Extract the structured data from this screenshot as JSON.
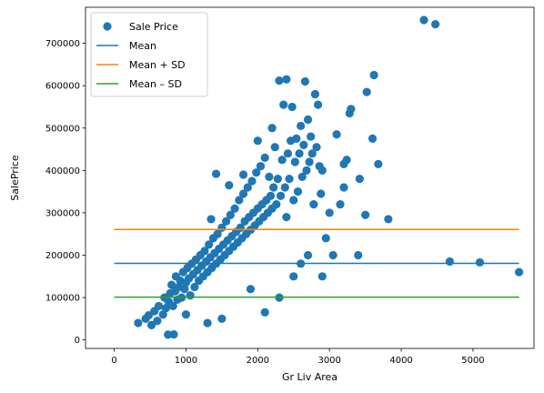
{
  "chart_data": {
    "type": "scatter",
    "title": "",
    "xlabel": "Gr Liv Area",
    "ylabel": "SalePrice",
    "xlim": [
      -400,
      5850
    ],
    "ylim": [
      -20000,
      785000
    ],
    "xticks": [
      0,
      1000,
      2000,
      3000,
      4000,
      5000
    ],
    "yticks": [
      0,
      100000,
      200000,
      300000,
      400000,
      500000,
      600000,
      700000
    ],
    "grid": false,
    "legend_position": "top-left",
    "series": [
      {
        "name": "Sale Price",
        "kind": "scatter",
        "color": "#1f77b4",
        "points": [
          [
            334,
            40000
          ],
          [
            438,
            50000
          ],
          [
            480,
            58000
          ],
          [
            520,
            35000
          ],
          [
            560,
            68000
          ],
          [
            600,
            45000
          ],
          [
            620,
            80000
          ],
          [
            680,
            60000
          ],
          [
            700,
            100000
          ],
          [
            720,
            75000
          ],
          [
            750,
            12500
          ],
          [
            760,
            90000
          ],
          [
            780,
            110000
          ],
          [
            800,
            130000
          ],
          [
            820,
            80000
          ],
          [
            830,
            13000
          ],
          [
            850,
            115000
          ],
          [
            860,
            150000
          ],
          [
            880,
            95000
          ],
          [
            900,
            125000
          ],
          [
            920,
            140000
          ],
          [
            940,
            100000
          ],
          [
            960,
            160000
          ],
          [
            980,
            120000
          ],
          [
            1000,
            135000
          ],
          [
            1000,
            60000
          ],
          [
            1020,
            170000
          ],
          [
            1040,
            145000
          ],
          [
            1060,
            105000
          ],
          [
            1080,
            180000
          ],
          [
            1100,
            155000
          ],
          [
            1120,
            125000
          ],
          [
            1140,
            190000
          ],
          [
            1160,
            165000
          ],
          [
            1180,
            140000
          ],
          [
            1200,
            200000
          ],
          [
            1220,
            175000
          ],
          [
            1240,
            150000
          ],
          [
            1260,
            210000
          ],
          [
            1280,
            185000
          ],
          [
            1300,
            160000
          ],
          [
            1300,
            40000
          ],
          [
            1320,
            225000
          ],
          [
            1340,
            195000
          ],
          [
            1350,
            285000
          ],
          [
            1360,
            170000
          ],
          [
            1380,
            240000
          ],
          [
            1400,
            205000
          ],
          [
            1420,
            180000
          ],
          [
            1420,
            392000
          ],
          [
            1440,
            250000
          ],
          [
            1460,
            215000
          ],
          [
            1480,
            190000
          ],
          [
            1500,
            265000
          ],
          [
            1500,
            50000
          ],
          [
            1520,
            225000
          ],
          [
            1540,
            200000
          ],
          [
            1560,
            280000
          ],
          [
            1580,
            235000
          ],
          [
            1600,
            210000
          ],
          [
            1600,
            365000
          ],
          [
            1620,
            295000
          ],
          [
            1640,
            245000
          ],
          [
            1660,
            220000
          ],
          [
            1680,
            310000
          ],
          [
            1700,
            255000
          ],
          [
            1720,
            230000
          ],
          [
            1740,
            330000
          ],
          [
            1760,
            265000
          ],
          [
            1780,
            240000
          ],
          [
            1800,
            345000
          ],
          [
            1800,
            390000
          ],
          [
            1820,
            280000
          ],
          [
            1840,
            250000
          ],
          [
            1860,
            360000
          ],
          [
            1880,
            290000
          ],
          [
            1900,
            260000
          ],
          [
            1900,
            120000
          ],
          [
            1920,
            375000
          ],
          [
            1940,
            300000
          ],
          [
            1960,
            270000
          ],
          [
            1980,
            395000
          ],
          [
            2000,
            310000
          ],
          [
            2000,
            470000
          ],
          [
            2020,
            280000
          ],
          [
            2040,
            410000
          ],
          [
            2060,
            320000
          ],
          [
            2080,
            290000
          ],
          [
            2100,
            430000
          ],
          [
            2100,
            65000
          ],
          [
            2120,
            330000
          ],
          [
            2140,
            300000
          ],
          [
            2160,
            385000
          ],
          [
            2180,
            340000
          ],
          [
            2200,
            500000
          ],
          [
            2200,
            310000
          ],
          [
            2220,
            360000
          ],
          [
            2240,
            455000
          ],
          [
            2260,
            320000
          ],
          [
            2280,
            380000
          ],
          [
            2300,
            612000
          ],
          [
            2300,
            100000
          ],
          [
            2320,
            340000
          ],
          [
            2340,
            425000
          ],
          [
            2360,
            555000
          ],
          [
            2380,
            360000
          ],
          [
            2400,
            615000
          ],
          [
            2400,
            290000
          ],
          [
            2420,
            440000
          ],
          [
            2440,
            380000
          ],
          [
            2460,
            470000
          ],
          [
            2480,
            550000
          ],
          [
            2500,
            330000
          ],
          [
            2500,
            150000
          ],
          [
            2520,
            420000
          ],
          [
            2540,
            475000
          ],
          [
            2560,
            350000
          ],
          [
            2580,
            440000
          ],
          [
            2600,
            505000
          ],
          [
            2600,
            180000
          ],
          [
            2620,
            385000
          ],
          [
            2640,
            460000
          ],
          [
            2660,
            610000
          ],
          [
            2680,
            400000
          ],
          [
            2700,
            520000
          ],
          [
            2700,
            200000
          ],
          [
            2720,
            420000
          ],
          [
            2740,
            480000
          ],
          [
            2760,
            440000
          ],
          [
            2780,
            320000
          ],
          [
            2800,
            580000
          ],
          [
            2820,
            455000
          ],
          [
            2840,
            555000
          ],
          [
            2860,
            410000
          ],
          [
            2880,
            345000
          ],
          [
            2900,
            400000
          ],
          [
            2900,
            150000
          ],
          [
            2950,
            240000
          ],
          [
            3000,
            300000
          ],
          [
            3050,
            200000
          ],
          [
            3100,
            485000
          ],
          [
            3150,
            320000
          ],
          [
            3200,
            360000
          ],
          [
            3200,
            415000
          ],
          [
            3240,
            425000
          ],
          [
            3280,
            535000
          ],
          [
            3300,
            545000
          ],
          [
            3400,
            200000
          ],
          [
            3420,
            380000
          ],
          [
            3500,
            295000
          ],
          [
            3520,
            585000
          ],
          [
            3600,
            475000
          ],
          [
            3620,
            625000
          ],
          [
            3680,
            415000
          ],
          [
            3820,
            285000
          ],
          [
            4316,
            755000
          ],
          [
            4476,
            745000
          ],
          [
            4676,
            185000
          ],
          [
            5095,
            183000
          ],
          [
            5642,
            160000
          ]
        ]
      },
      {
        "name": "Mean",
        "kind": "hline",
        "color": "#1f77b4",
        "y": 180796,
        "x_from": 0,
        "x_to": 5642
      },
      {
        "name": "Mean + SD",
        "kind": "hline",
        "color": "#ff7f0e",
        "y": 260682,
        "x_from": 0,
        "x_to": 5642
      },
      {
        "name": "Mean – SD",
        "kind": "hline",
        "color": "#2ca02c",
        "y": 100910,
        "x_from": 0,
        "x_to": 5642
      }
    ]
  }
}
